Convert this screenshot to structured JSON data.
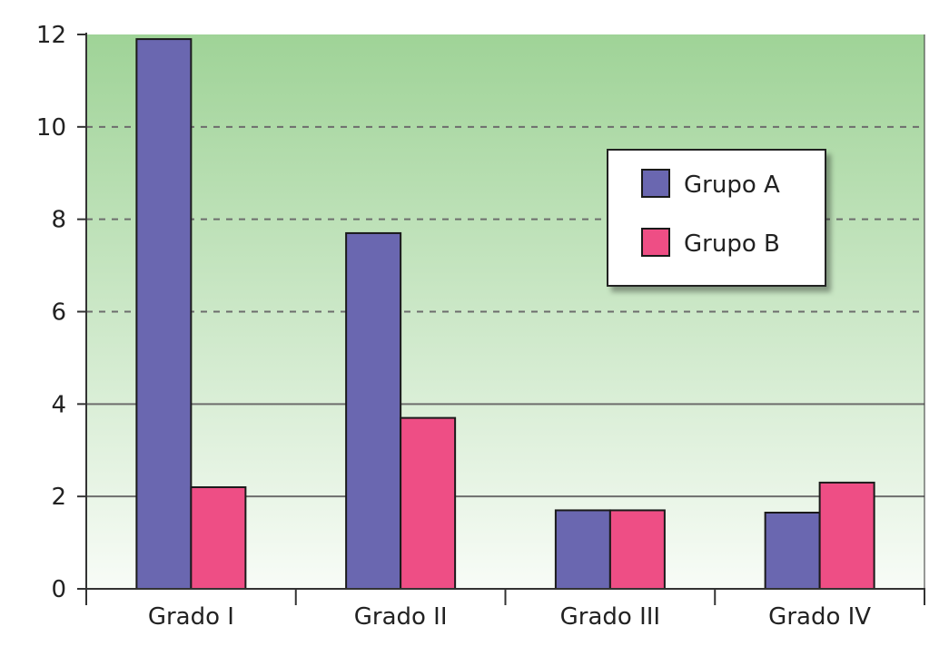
{
  "chart_data": {
    "type": "bar",
    "title": "",
    "xlabel": "",
    "ylabel": "",
    "categories": [
      "Grado I",
      "Grado II",
      "Grado III",
      "Grado IV"
    ],
    "series": [
      {
        "name": "Grupo A",
        "color": "#6a67b0",
        "values": [
          11.9,
          7.7,
          1.7,
          1.65
        ]
      },
      {
        "name": "Grupo B",
        "color": "#ee4e85",
        "values": [
          2.2,
          3.7,
          1.7,
          2.3
        ]
      }
    ],
    "ylim": [
      0,
      12
    ],
    "yticks": [
      "0",
      "2",
      "4",
      "6",
      "8",
      "10",
      "12"
    ],
    "gridlines": {
      "solid": [
        2,
        4
      ],
      "dashed": [
        6,
        8,
        10
      ]
    },
    "background": {
      "top_color": "#9fd397",
      "bottom_color": "#f8fcf7"
    },
    "legend": {
      "placement": "top-right"
    }
  }
}
